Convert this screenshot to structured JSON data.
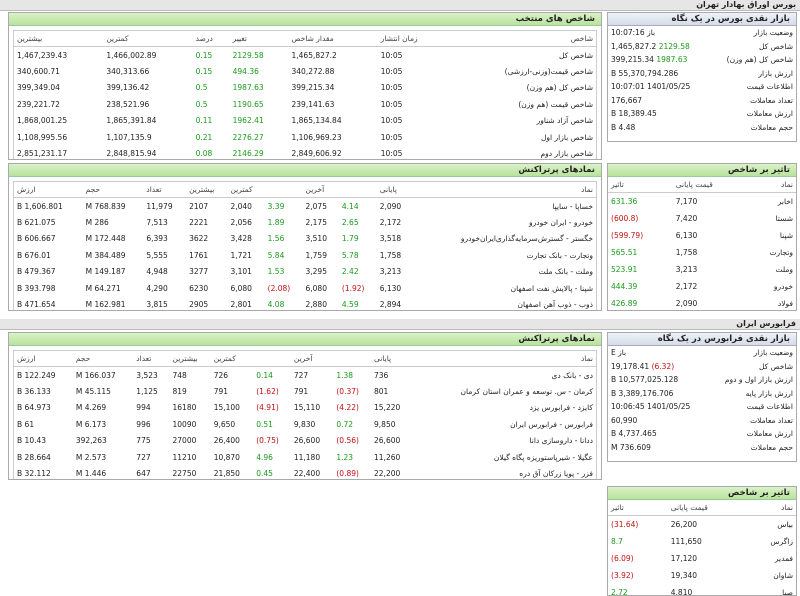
{
  "header": {
    "title": "بورس اوراق بهادار تهران"
  },
  "bourse": {
    "summary": {
      "title": "بازار نقدی بورس در یک نگاه",
      "rows": [
        {
          "label": "وضعیت بازار",
          "value": "باز 10:07:16"
        },
        {
          "label": "شاخص کل",
          "value": "1,465,827.2",
          "change": "2129.58"
        },
        {
          "label": "شاخص کل (هم وزن)",
          "value": "399,215.34",
          "change": "1987.63"
        },
        {
          "label": "ارزش بازار",
          "value": "55,370,794.286 B"
        },
        {
          "label": "اطلاعات قیمت",
          "value": "1401/05/25 10:07:01"
        },
        {
          "label": "تعداد معاملات",
          "value": "176,667"
        },
        {
          "label": "ارزش معاملات",
          "value": "18,389.45 B"
        },
        {
          "label": "حجم معاملات",
          "value": "4.48 B"
        }
      ]
    },
    "indices": {
      "title": "شاخص های منتخب",
      "columns": [
        "شاخص",
        "زمان انتشار",
        "مقدار شاخص",
        "تغییر",
        "درصد",
        "کمترین",
        "بیشترین"
      ],
      "rows": [
        [
          "شاخص کل",
          "10:05",
          "1,465,827.2",
          "2129.58",
          "0.15",
          "1,466,002.89",
          "1,467,239.43"
        ],
        [
          "شاخص قیمت(وزنی-ارزشی)",
          "10:05",
          "340,272.88",
          "494.36",
          "0.15",
          "340,313.66",
          "340,600.71"
        ],
        [
          "شاخص کل (هم وزن)",
          "10:05",
          "399,215.34",
          "1987.63",
          "0.5",
          "399,136.42",
          "399,349.04"
        ],
        [
          "شاخص قیمت (هم وزن)",
          "10:05",
          "239,141.63",
          "1190.65",
          "0.5",
          "238,521.96",
          "239,221.72"
        ],
        [
          "شاخص آزاد شناور",
          "10:05",
          "1,865,134.84",
          "1962.41",
          "0.11",
          "1,865,391.84",
          "1,868,001.25"
        ],
        [
          "شاخص بازار اول",
          "10:05",
          "1,106,969.23",
          "2276.27",
          "0.21",
          "1,107,135.9",
          "1,108,995.56"
        ],
        [
          "شاخص بازار دوم",
          "10:05",
          "2,849,606.92",
          "2146.29",
          "0.08",
          "2,848,815.94",
          "2,851,231.17"
        ]
      ]
    },
    "active": {
      "title": "نمادهای پرتراکنش",
      "columns": [
        "نماد",
        "پایانی",
        null,
        "آخرین",
        null,
        "کمترین",
        "بیشترین",
        "تعداد",
        "حجم",
        "ارزش"
      ],
      "rows": [
        [
          "خساپا - سایپا",
          "2,090",
          "4.14",
          "2,075",
          "3.39",
          "2,040",
          "2107",
          "11,979",
          "768.839 M",
          "1,606.801 B"
        ],
        [
          "خودرو - ایران خودرو",
          "2,172",
          "2.65",
          "2,175",
          "1.89",
          "2,056",
          "2221",
          "7,513",
          "286 M",
          "621.075 B"
        ],
        [
          "خگستر - گسترش‌سرمایه‌گذاری‌ایران‌خودرو",
          "3,518",
          "1.79",
          "3,510",
          "1.56",
          "3,428",
          "3622",
          "6,393",
          "172.448 M",
          "606.667 B"
        ],
        [
          "وتجارت - بانک تجارت",
          "1,758",
          "5.78",
          "1,759",
          "5.84",
          "1,721",
          "1761",
          "5,555",
          "384.489 M",
          "676.01 B"
        ],
        [
          "وملت - بانک ملت",
          "3,213",
          "2.42",
          "3,295",
          "1.53",
          "3,101",
          "3277",
          "4,948",
          "149.187 M",
          "479.367 B"
        ],
        [
          "شپنا - پالایش نفت اصفهان",
          "6,130",
          "(1.92)",
          "6,080",
          "(2.08)",
          "6,080",
          "6230",
          "4,290",
          "64.271 M",
          "393.798 B"
        ],
        [
          "ذوب - ذوب آهن اصفهان",
          "2,894",
          "4.59",
          "2,880",
          "4.08",
          "2,801",
          "2905",
          "3,815",
          "162.981 M",
          "471.654 B"
        ]
      ]
    },
    "impact": {
      "title": "تاثیر بر شاخص",
      "columns": [
        "نماد",
        "قیمت پایانی",
        "تاثیر"
      ],
      "rows": [
        [
          "اخابر",
          "7,170",
          "631.36"
        ],
        [
          "شستا",
          "7,420",
          "(600.8)"
        ],
        [
          "شپنا",
          "6,130",
          "(599.79)"
        ],
        [
          "وتجارت",
          "1,758",
          "565.51"
        ],
        [
          "وملت",
          "3,213",
          "523.91"
        ],
        [
          "خودرو",
          "2,172",
          "444.39"
        ],
        [
          "فولاد",
          "2,090",
          "426.89"
        ]
      ]
    }
  },
  "farabourse": {
    "title": "فرابورس ایران",
    "summary": {
      "title": "بازار نقدی فرابورس در یک نگاه",
      "rows": [
        {
          "label": "وضعیت بازار",
          "value": "باز E"
        },
        {
          "label": "شاخص کل",
          "value": "19,178.41",
          "change": "(6.32)"
        },
        {
          "label": "ارزش بازار اول و دوم",
          "value": "10,577,025.128 B"
        },
        {
          "label": "ارزش بازار پایه",
          "value": "3,389,176.706 B"
        },
        {
          "label": "اطلاعات قیمت",
          "value": "1401/05/25 10:06:45"
        },
        {
          "label": "تعداد معاملات",
          "value": "60,990"
        },
        {
          "label": "ارزش معاملات",
          "value": "4,737.465 B"
        },
        {
          "label": "حجم معاملات",
          "value": "736.609 M"
        }
      ]
    },
    "active": {
      "title": "نمادهای پرتراکنش",
      "columns": [
        "نماد",
        "پایانی",
        null,
        "آخرین",
        null,
        "کمترین",
        "بیشترین",
        "تعداد",
        "حجم",
        "ارزش"
      ],
      "rows": [
        [
          "دی - بانک دی",
          "736",
          "1.38",
          "727",
          "0.14",
          "726",
          "748",
          "3,523",
          "166.037 M",
          "122.249 B"
        ],
        [
          "کرمان - س. توسعه و عمران استان کرمان",
          "801",
          "(0.37)",
          "791",
          "(1.62)",
          "791",
          "819",
          "1,125",
          "45.115 M",
          "36.133 B"
        ],
        [
          "کایزد - فرابورس یزد",
          "15,220",
          "(4.22)",
          "15,110",
          "(4.91)",
          "15,100",
          "16180",
          "994",
          "4.269 M",
          "64.973 B"
        ],
        [
          "فرابورس - فرابورس ایران",
          "9,850",
          "0.72",
          "9,830",
          "0.51",
          "9,650",
          "10090",
          "996",
          "6.173 M",
          "61 B"
        ],
        [
          "ددانا - داروسازی دانا",
          "26,600",
          "(0.56)",
          "26,600",
          "(0.75)",
          "26,400",
          "27000",
          "775",
          "392,263",
          "10.43 B"
        ],
        [
          "عگیلا - شیرپاستوریزه پگاه گیلان",
          "11,260",
          "1.23",
          "11,180",
          "4.96",
          "10,870",
          "11210",
          "727",
          "2.573 M",
          "28.664 B"
        ],
        [
          "فزر - پویا زرکان آق دره",
          "22,200",
          "(0.89)",
          "22,400",
          "0.45",
          "21,850",
          "22750",
          "647",
          "1.446 M",
          "32.112 B"
        ]
      ]
    },
    "impact": {
      "title": "تاثیر بر شاخص",
      "columns": [
        "نماد",
        "قیمت پایانی",
        "تاثیر"
      ],
      "rows": [
        [
          "بیاس",
          "26,200",
          "(31.64)"
        ],
        [
          "زاگرس",
          "111,650",
          "8.7"
        ],
        [
          "فمدیر",
          "17,120",
          "(6.09)"
        ],
        [
          "شاوان",
          "19,340",
          "(3.92)"
        ],
        [
          "صبا",
          "4,810",
          "2.72"
        ]
      ]
    }
  }
}
